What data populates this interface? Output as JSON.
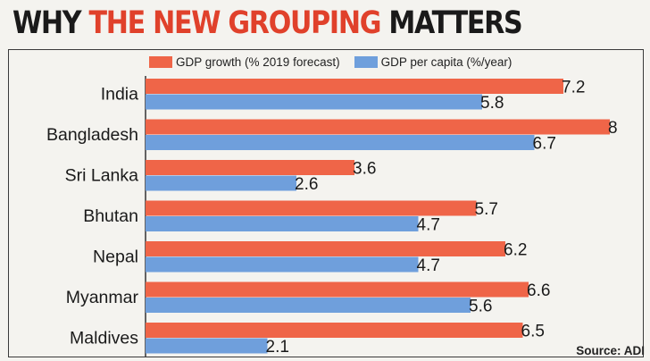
{
  "title": {
    "part1": "WHY ",
    "part2": "THE NEW GROUPING",
    "part3": " MATTERS"
  },
  "legend": [
    {
      "label": "GDP growth (% 2019 forecast)",
      "color": "#ef6548"
    },
    {
      "label": "GDP per capita (%/year)",
      "color": "#6f9fdc"
    }
  ],
  "source": "Source: ADI",
  "chart_data": {
    "type": "bar",
    "orientation": "horizontal",
    "categories": [
      "India",
      "Bangladesh",
      "Sri Lanka",
      "Bhutan",
      "Nepal",
      "Myanmar",
      "Maldives"
    ],
    "series": [
      {
        "name": "GDP growth (% 2019 forecast)",
        "color": "#ef6548",
        "values": [
          7.2,
          8,
          3.6,
          5.7,
          6.2,
          6.6,
          6.5
        ],
        "labels": [
          "7.2",
          "8",
          "3.6",
          "5.7",
          "6.2",
          "6.6",
          "6.5"
        ]
      },
      {
        "name": "GDP per capita (%/year)",
        "color": "#6f9fdc",
        "values": [
          5.8,
          6.7,
          2.6,
          4.7,
          4.7,
          5.6,
          2.1
        ],
        "labels": [
          "5.8",
          "6.7",
          "2.6",
          "4.7",
          "4.7",
          "5.6",
          "2.1"
        ]
      }
    ],
    "xlim": [
      0,
      8
    ],
    "title": "WHY THE NEW GROUPING MATTERS",
    "xlabel": "",
    "ylabel": "",
    "grid": false,
    "legend_position": "top"
  }
}
